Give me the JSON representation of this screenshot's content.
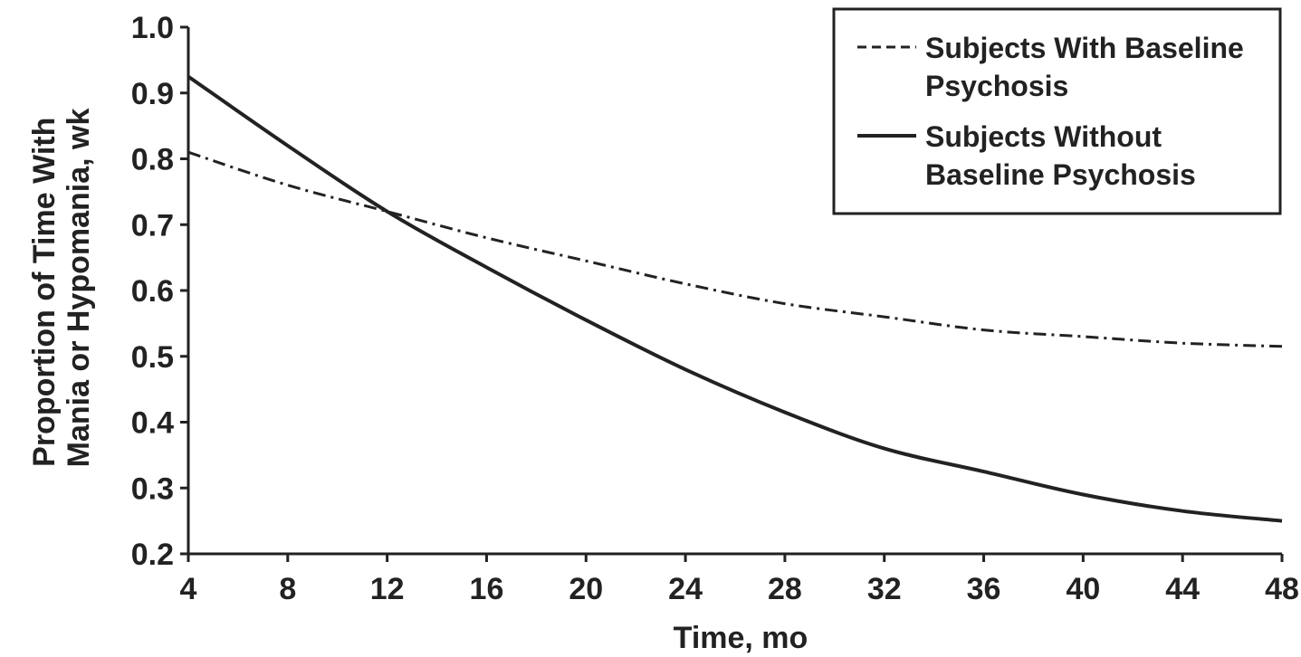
{
  "chart_data": {
    "type": "line",
    "xlabel": "Time, mo",
    "ylabel": [
      "Proportion of Time With",
      "Mania or Hypomania, wk"
    ],
    "xlim": [
      4,
      48
    ],
    "ylim": [
      0.2,
      1.0
    ],
    "x_ticks": [
      4,
      8,
      12,
      16,
      20,
      24,
      28,
      32,
      36,
      40,
      44,
      48
    ],
    "x_tick_labels": [
      "4",
      "8",
      "12",
      "16",
      "20",
      "24",
      "28",
      "32",
      "36",
      "40",
      "44",
      "48"
    ],
    "y_ticks": [
      0.2,
      0.3,
      0.4,
      0.5,
      0.6,
      0.7,
      0.8,
      0.9,
      1.0
    ],
    "y_tick_labels": [
      "0.2",
      "0.3",
      "0.4",
      "0.5",
      "0.6",
      "0.7",
      "0.8",
      "0.9",
      "1.0"
    ],
    "grid": false,
    "legend_position": "top-right",
    "series": [
      {
        "name": [
          "Subjects With Baseline",
          "Psychosis"
        ],
        "style": "dashed",
        "color": "#222222",
        "x": [
          4,
          8,
          12,
          16,
          20,
          24,
          28,
          32,
          36,
          40,
          44,
          48
        ],
        "values": [
          0.81,
          0.76,
          0.72,
          0.68,
          0.645,
          0.61,
          0.58,
          0.56,
          0.54,
          0.53,
          0.52,
          0.515
        ]
      },
      {
        "name": [
          "Subjects Without",
          "Baseline Psychosis"
        ],
        "style": "solid",
        "color": "#222222",
        "x": [
          4,
          8,
          12,
          16,
          20,
          24,
          28,
          32,
          36,
          40,
          44,
          48
        ],
        "values": [
          0.925,
          0.82,
          0.72,
          0.635,
          0.555,
          0.48,
          0.415,
          0.36,
          0.325,
          0.29,
          0.265,
          0.25
        ]
      }
    ]
  }
}
